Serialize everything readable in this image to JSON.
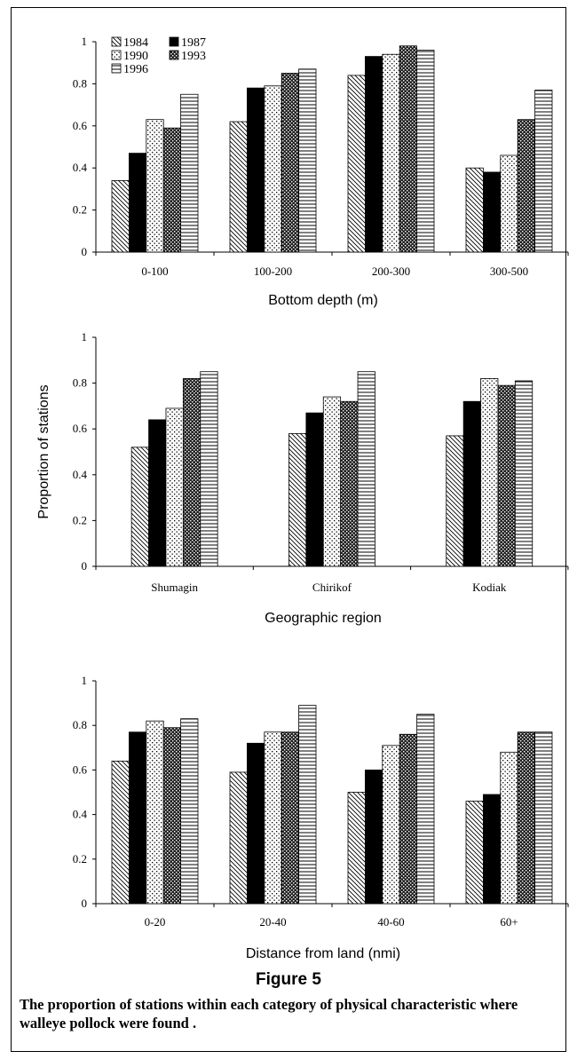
{
  "figure": {
    "title": "Figure 5",
    "caption": "The proportion of stations within each category of physical characteristic where walleye pollock were found ."
  },
  "chart_data": [
    {
      "type": "bar",
      "xlabel": "Bottom depth (m)",
      "ylabel": "",
      "ylim": [
        0,
        1
      ],
      "yticks": [
        "0",
        "0.2",
        "0.4",
        "0.6",
        "0.8",
        "1"
      ],
      "categories": [
        "0-100",
        "100-200",
        "200-300",
        "300-500"
      ],
      "legend_position": "top-left",
      "series": [
        {
          "name": "1984",
          "pattern": "diagonal",
          "values": [
            0.34,
            0.62,
            0.84,
            0.4
          ]
        },
        {
          "name": "1987",
          "pattern": "solid",
          "values": [
            0.47,
            0.78,
            0.93,
            0.38
          ]
        },
        {
          "name": "1990",
          "pattern": "dots",
          "values": [
            0.63,
            0.79,
            0.94,
            0.46
          ]
        },
        {
          "name": "1993",
          "pattern": "checker",
          "values": [
            0.59,
            0.85,
            0.98,
            0.63
          ]
        },
        {
          "name": "1996",
          "pattern": "horizontal",
          "values": [
            0.75,
            0.87,
            0.96,
            0.77
          ]
        }
      ]
    },
    {
      "type": "bar",
      "xlabel": "Geographic region",
      "ylabel": "Proportion of stations",
      "ylim": [
        0,
        1
      ],
      "yticks": [
        "0",
        "0.2",
        "0.4",
        "0.6",
        "0.8",
        "1"
      ],
      "categories": [
        "Shumagin",
        "Chirikof",
        "Kodiak"
      ],
      "series": [
        {
          "name": "1984",
          "pattern": "diagonal",
          "values": [
            0.52,
            0.58,
            0.57
          ]
        },
        {
          "name": "1987",
          "pattern": "solid",
          "values": [
            0.64,
            0.67,
            0.72
          ]
        },
        {
          "name": "1990",
          "pattern": "dots",
          "values": [
            0.69,
            0.74,
            0.82
          ]
        },
        {
          "name": "1993",
          "pattern": "checker",
          "values": [
            0.82,
            0.72,
            0.79
          ]
        },
        {
          "name": "1996",
          "pattern": "horizontal",
          "values": [
            0.85,
            0.85,
            0.81
          ]
        }
      ]
    },
    {
      "type": "bar",
      "xlabel": "Distance from land (nmi)",
      "ylabel": "",
      "ylim": [
        0,
        1
      ],
      "yticks": [
        "0",
        "0.2",
        "0.4",
        "0.6",
        "0.8",
        "1"
      ],
      "categories": [
        "0-20",
        "20-40",
        "40-60",
        "60+"
      ],
      "series": [
        {
          "name": "1984",
          "pattern": "diagonal",
          "values": [
            0.64,
            0.59,
            0.5,
            0.46
          ]
        },
        {
          "name": "1987",
          "pattern": "solid",
          "values": [
            0.77,
            0.72,
            0.6,
            0.49
          ]
        },
        {
          "name": "1990",
          "pattern": "dots",
          "values": [
            0.82,
            0.77,
            0.71,
            0.68
          ]
        },
        {
          "name": "1993",
          "pattern": "checker",
          "values": [
            0.79,
            0.77,
            0.76,
            0.77
          ]
        },
        {
          "name": "1996",
          "pattern": "horizontal",
          "values": [
            0.83,
            0.89,
            0.85,
            0.77
          ]
        }
      ]
    }
  ]
}
